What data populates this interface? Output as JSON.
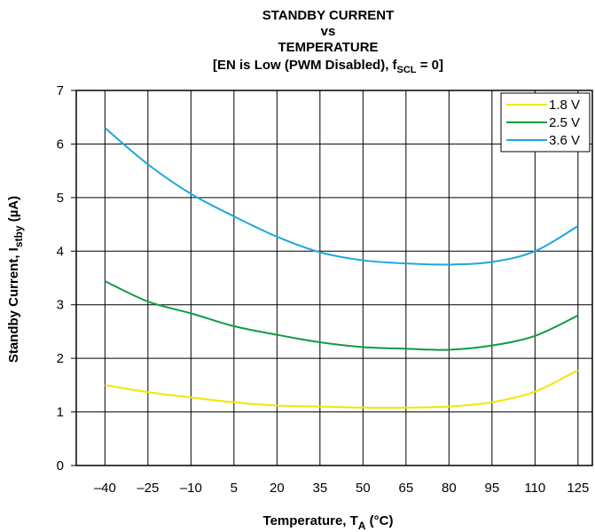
{
  "chart_data": {
    "type": "line",
    "title_lines": [
      "STANDBY CURRENT",
      "vs",
      "TEMPERATURE"
    ],
    "subtitle": {
      "prefix": "[EN is Low (PWM Disabled), f",
      "sub": "SCL",
      "suffix": " = 0]"
    },
    "xlabel": {
      "main": "Temperature, T",
      "sub": "A",
      "tail": " (°C)"
    },
    "ylabel": {
      "main": "Standby Current, I",
      "sub": "stby",
      "tail": " (µA)"
    },
    "xlim": [
      -50,
      130
    ],
    "ylim": [
      0,
      7
    ],
    "xticks": [
      -40,
      -25,
      -10,
      5,
      20,
      35,
      50,
      65,
      80,
      95,
      110,
      125
    ],
    "xtick_labels": [
      "–40",
      "–25",
      "–10",
      "5",
      "20",
      "35",
      "50",
      "65",
      "80",
      "95",
      "110",
      "125"
    ],
    "yticks": [
      0,
      1,
      2,
      3,
      4,
      5,
      6,
      7
    ],
    "ytick_labels": [
      "0",
      "1",
      "2",
      "3",
      "4",
      "5",
      "6",
      "7"
    ],
    "grid": true,
    "legend_position": "top-right",
    "x": [
      -40,
      -25,
      -10,
      5,
      20,
      35,
      50,
      65,
      80,
      95,
      110,
      125
    ],
    "series": [
      {
        "name": "1.8 V",
        "color": "#f2e600",
        "values": [
          1.5,
          1.37,
          1.27,
          1.18,
          1.12,
          1.1,
          1.08,
          1.08,
          1.1,
          1.18,
          1.38,
          1.78
        ]
      },
      {
        "name": "2.5 V",
        "color": "#119a44",
        "values": [
          3.44,
          3.06,
          2.84,
          2.6,
          2.44,
          2.3,
          2.21,
          2.18,
          2.16,
          2.24,
          2.42,
          2.8
        ]
      },
      {
        "name": "3.6 V",
        "color": "#1ca8dc",
        "values": [
          6.3,
          5.62,
          5.07,
          4.65,
          4.27,
          3.98,
          3.83,
          3.77,
          3.75,
          3.8,
          4.0,
          4.47
        ]
      }
    ]
  }
}
